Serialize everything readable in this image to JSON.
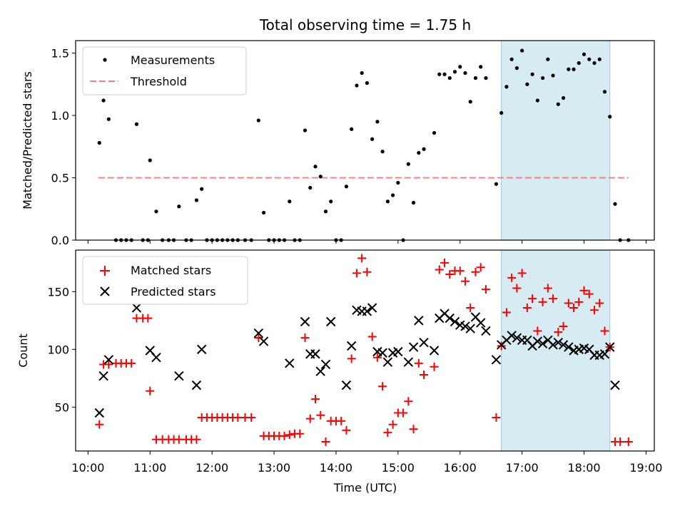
{
  "chart_data": {
    "type": "scatter",
    "title": "Total observing time = 1.75 h",
    "xlabel": "Time (UTC)",
    "x_ticks": [
      "10:00",
      "11:00",
      "12:00",
      "13:00",
      "14:00",
      "15:00",
      "16:00",
      "17:00",
      "18:00",
      "19:00"
    ],
    "xlim": [
      "09:48",
      "19:08"
    ],
    "highlight_span": [
      "16:40",
      "18:25"
    ],
    "colors": {
      "measurements": "#000000",
      "threshold": "#ff7f7f",
      "matched": "#ff0000",
      "predicted": "#000000",
      "span": "#add8e6"
    },
    "panels": [
      {
        "ylabel": "Matched/Predicted stars",
        "ylim": [
          0,
          1.6
        ],
        "y_ticks": [
          0,
          0.5,
          1.0,
          1.5
        ],
        "y_tick_labels": [
          "0.0",
          "0.5",
          "1.0",
          "1.5"
        ],
        "legend": [
          "Measurements",
          "Threshold"
        ],
        "legend_loc": "upper left",
        "threshold": {
          "value": 0.5,
          "x_start": "10:10",
          "x_end": "18:43"
        },
        "measurements": [
          [
            "10:11",
            0.78
          ],
          [
            "10:15",
            1.12
          ],
          [
            "10:20",
            0.97
          ],
          [
            "10:27",
            0
          ],
          [
            "10:32",
            0
          ],
          [
            "10:37",
            0
          ],
          [
            "10:42",
            0
          ],
          [
            "10:47",
            0.93
          ],
          [
            "10:53",
            0
          ],
          [
            "10:58",
            0
          ],
          [
            "11:00",
            0.64
          ],
          [
            "11:06",
            0.23
          ],
          [
            "11:12",
            0
          ],
          [
            "11:18",
            0
          ],
          [
            "11:23",
            0
          ],
          [
            "11:28",
            0.27
          ],
          [
            "11:35",
            0
          ],
          [
            "11:40",
            0
          ],
          [
            "11:45",
            0.32
          ],
          [
            "11:50",
            0.41
          ],
          [
            "11:55",
            0
          ],
          [
            "12:00",
            0
          ],
          [
            "12:05",
            0
          ],
          [
            "12:10",
            0
          ],
          [
            "12:15",
            0
          ],
          [
            "12:20",
            0
          ],
          [
            "12:25",
            0
          ],
          [
            "12:32",
            0
          ],
          [
            "12:38",
            0
          ],
          [
            "12:45",
            0.96
          ],
          [
            "12:50",
            0.22
          ],
          [
            "12:55",
            0
          ],
          [
            "13:00",
            0
          ],
          [
            "13:05",
            0
          ],
          [
            "13:10",
            0
          ],
          [
            "13:15",
            0.31
          ],
          [
            "13:20",
            0
          ],
          [
            "13:25",
            0
          ],
          [
            "13:30",
            0.88
          ],
          [
            "13:35",
            0.42
          ],
          [
            "13:40",
            0.59
          ],
          [
            "13:45",
            0.51
          ],
          [
            "13:50",
            0.23
          ],
          [
            "13:55",
            0.31
          ],
          [
            "14:00",
            0
          ],
          [
            "14:05",
            0
          ],
          [
            "14:10",
            0.43
          ],
          [
            "14:15",
            0.89
          ],
          [
            "14:20",
            1.24
          ],
          [
            "14:25",
            1.34
          ],
          [
            "14:30",
            1.26
          ],
          [
            "14:35",
            0.81
          ],
          [
            "14:40",
            0.95
          ],
          [
            "14:45",
            0.71
          ],
          [
            "14:50",
            0.31
          ],
          [
            "14:55",
            0.36
          ],
          [
            "15:00",
            0.46
          ],
          [
            "15:05",
            0
          ],
          [
            "15:10",
            0.61
          ],
          [
            "15:15",
            0.3
          ],
          [
            "15:20",
            0.7
          ],
          [
            "15:25",
            0.73
          ],
          [
            "15:35",
            0.86
          ],
          [
            "15:40",
            1.33
          ],
          [
            "15:45",
            1.33
          ],
          [
            "15:50",
            1.3
          ],
          [
            "15:55",
            1.35
          ],
          [
            "16:00",
            1.39
          ],
          [
            "16:05",
            1.34
          ],
          [
            "16:10",
            1.11
          ],
          [
            "16:15",
            1.3
          ],
          [
            "16:20",
            1.39
          ],
          [
            "16:25",
            1.3
          ],
          [
            "16:35",
            0.45
          ],
          [
            "16:40",
            1.02
          ],
          [
            "16:45",
            1.23
          ],
          [
            "16:50",
            1.45
          ],
          [
            "16:55",
            1.38
          ],
          [
            "17:00",
            1.52
          ],
          [
            "17:05",
            1.25
          ],
          [
            "17:10",
            1.33
          ],
          [
            "17:15",
            1.12
          ],
          [
            "17:20",
            1.3
          ],
          [
            "17:25",
            1.45
          ],
          [
            "17:30",
            1.32
          ],
          [
            "17:35",
            1.09
          ],
          [
            "17:40",
            1.14
          ],
          [
            "17:45",
            1.37
          ],
          [
            "17:50",
            1.37
          ],
          [
            "17:55",
            1.42
          ],
          [
            "18:00",
            1.49
          ],
          [
            "18:05",
            1.45
          ],
          [
            "18:10",
            1.42
          ],
          [
            "18:15",
            1.45
          ],
          [
            "18:20",
            1.19
          ],
          [
            "18:25",
            0.99
          ],
          [
            "18:30",
            0.29
          ],
          [
            "18:35",
            0
          ],
          [
            "18:43",
            0
          ]
        ]
      },
      {
        "ylabel": "Count",
        "ylim": [
          12,
          186
        ],
        "y_ticks": [
          50,
          100,
          150
        ],
        "y_tick_labels": [
          "50",
          "100",
          "150"
        ],
        "legend": [
          "Matched stars",
          "Predicted stars"
        ],
        "legend_loc": "upper left",
        "matched": [
          [
            "10:11",
            35
          ],
          [
            "10:15",
            87
          ],
          [
            "10:20",
            87
          ],
          [
            "10:27",
            88
          ],
          [
            "10:32",
            88
          ],
          [
            "10:37",
            88
          ],
          [
            "10:42",
            88
          ],
          [
            "10:47",
            127
          ],
          [
            "10:53",
            127
          ],
          [
            "10:58",
            127
          ],
          [
            "11:00",
            64
          ],
          [
            "11:06",
            22
          ],
          [
            "11:12",
            22
          ],
          [
            "11:18",
            22
          ],
          [
            "11:23",
            22
          ],
          [
            "11:28",
            22
          ],
          [
            "11:35",
            22
          ],
          [
            "11:40",
            22
          ],
          [
            "11:45",
            22
          ],
          [
            "11:50",
            41
          ],
          [
            "11:55",
            41
          ],
          [
            "12:00",
            41
          ],
          [
            "12:05",
            41
          ],
          [
            "12:10",
            41
          ],
          [
            "12:15",
            41
          ],
          [
            "12:20",
            41
          ],
          [
            "12:25",
            41
          ],
          [
            "12:32",
            41
          ],
          [
            "12:38",
            41
          ],
          [
            "12:45",
            110
          ],
          [
            "12:50",
            25
          ],
          [
            "12:55",
            25
          ],
          [
            "13:00",
            25
          ],
          [
            "13:05",
            25
          ],
          [
            "13:10",
            25
          ],
          [
            "13:15",
            26
          ],
          [
            "13:20",
            27
          ],
          [
            "13:25",
            27
          ],
          [
            "13:30",
            110
          ],
          [
            "13:35",
            40
          ],
          [
            "13:40",
            57
          ],
          [
            "13:45",
            43
          ],
          [
            "13:50",
            20
          ],
          [
            "13:55",
            38
          ],
          [
            "14:00",
            38
          ],
          [
            "14:05",
            38
          ],
          [
            "14:10",
            30
          ],
          [
            "14:15",
            92
          ],
          [
            "14:20",
            166
          ],
          [
            "14:25",
            179
          ],
          [
            "14:30",
            167
          ],
          [
            "14:35",
            111
          ],
          [
            "14:40",
            93
          ],
          [
            "14:45",
            68
          ],
          [
            "14:50",
            28
          ],
          [
            "14:55",
            35
          ],
          [
            "15:00",
            45
          ],
          [
            "15:05",
            45
          ],
          [
            "15:10",
            55
          ],
          [
            "15:15",
            31
          ],
          [
            "15:20",
            88
          ],
          [
            "15:25",
            78
          ],
          [
            "15:35",
            85
          ],
          [
            "15:40",
            169
          ],
          [
            "15:45",
            175
          ],
          [
            "15:50",
            165
          ],
          [
            "15:55",
            168
          ],
          [
            "16:00",
            168
          ],
          [
            "16:05",
            159
          ],
          [
            "16:10",
            136
          ],
          [
            "16:15",
            167
          ],
          [
            "16:20",
            171
          ],
          [
            "16:25",
            152
          ],
          [
            "16:35",
            41
          ],
          [
            "16:40",
            103
          ],
          [
            "16:45",
            132
          ],
          [
            "16:50",
            162
          ],
          [
            "16:55",
            153
          ],
          [
            "17:00",
            166
          ],
          [
            "17:05",
            136
          ],
          [
            "17:10",
            144
          ],
          [
            "17:15",
            116
          ],
          [
            "17:20",
            141
          ],
          [
            "17:25",
            153
          ],
          [
            "17:30",
            144
          ],
          [
            "17:35",
            115
          ],
          [
            "17:40",
            120
          ],
          [
            "17:45",
            140
          ],
          [
            "17:50",
            136
          ],
          [
            "17:55",
            141
          ],
          [
            "18:00",
            151
          ],
          [
            "18:05",
            148
          ],
          [
            "18:10",
            134
          ],
          [
            "18:15",
            140
          ],
          [
            "18:20",
            116
          ],
          [
            "18:25",
            102
          ],
          [
            "18:30",
            20
          ],
          [
            "18:35",
            20
          ],
          [
            "18:43",
            20
          ]
        ],
        "predicted": [
          [
            "10:11",
            45
          ],
          [
            "10:15",
            77
          ],
          [
            "10:20",
            91
          ],
          [
            "10:47",
            136
          ],
          [
            "11:00",
            99
          ],
          [
            "11:06",
            93
          ],
          [
            "11:28",
            77
          ],
          [
            "11:45",
            69
          ],
          [
            "11:50",
            100
          ],
          [
            "12:45",
            114
          ],
          [
            "12:50",
            107
          ],
          [
            "13:15",
            88
          ],
          [
            "13:30",
            124
          ],
          [
            "13:35",
            96
          ],
          [
            "13:40",
            96
          ],
          [
            "13:45",
            81
          ],
          [
            "13:50",
            87
          ],
          [
            "13:55",
            124
          ],
          [
            "14:10",
            69
          ],
          [
            "14:15",
            103
          ],
          [
            "14:20",
            134
          ],
          [
            "14:25",
            133
          ],
          [
            "14:30",
            133
          ],
          [
            "14:35",
            136
          ],
          [
            "14:40",
            98
          ],
          [
            "14:45",
            97
          ],
          [
            "14:50",
            89
          ],
          [
            "14:55",
            97
          ],
          [
            "15:00",
            98
          ],
          [
            "15:10",
            89
          ],
          [
            "15:15",
            102
          ],
          [
            "15:20",
            125
          ],
          [
            "15:25",
            106
          ],
          [
            "15:35",
            99
          ],
          [
            "15:40",
            127
          ],
          [
            "15:45",
            131
          ],
          [
            "15:50",
            127
          ],
          [
            "15:55",
            124
          ],
          [
            "16:00",
            121
          ],
          [
            "16:05",
            120
          ],
          [
            "16:10",
            118
          ],
          [
            "16:15",
            128
          ],
          [
            "16:20",
            123
          ],
          [
            "16:25",
            116
          ],
          [
            "16:35",
            91
          ],
          [
            "16:40",
            104
          ],
          [
            "16:45",
            108
          ],
          [
            "16:50",
            112
          ],
          [
            "16:55",
            110
          ],
          [
            "17:00",
            108
          ],
          [
            "17:05",
            108
          ],
          [
            "17:10",
            103
          ],
          [
            "17:15",
            107
          ],
          [
            "17:20",
            105
          ],
          [
            "17:25",
            108
          ],
          [
            "17:30",
            104
          ],
          [
            "17:35",
            106
          ],
          [
            "17:40",
            104
          ],
          [
            "17:45",
            102
          ],
          [
            "17:50",
            99
          ],
          [
            "17:55",
            100
          ],
          [
            "18:00",
            101
          ],
          [
            "18:05",
            100
          ],
          [
            "18:10",
            95
          ],
          [
            "18:15",
            95
          ],
          [
            "18:20",
            96
          ],
          [
            "18:25",
            102
          ],
          [
            "18:30",
            69
          ]
        ]
      }
    ]
  }
}
